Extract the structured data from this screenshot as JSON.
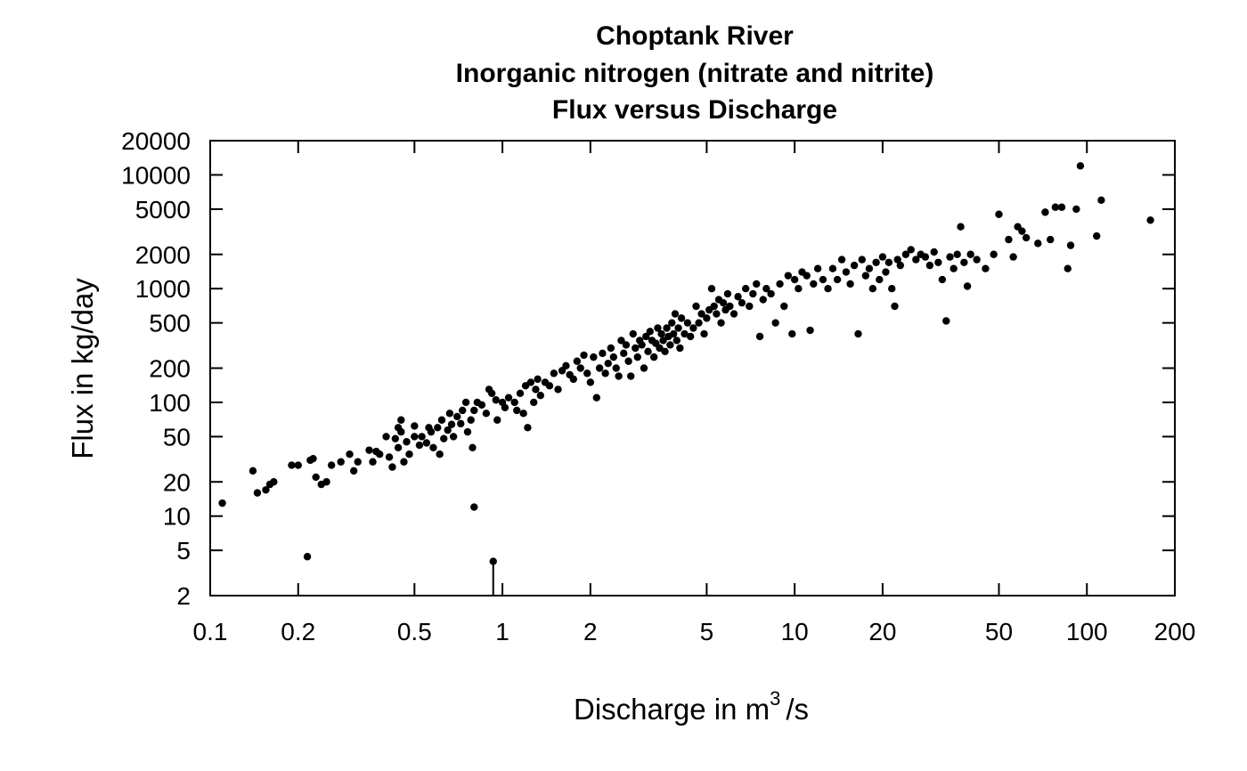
{
  "chart_data": {
    "type": "scatter",
    "title": [
      "Choptank River",
      "Inorganic nitrogen (nitrate and nitrite)",
      "Flux versus Discharge"
    ],
    "xlabel": {
      "prefix": "Discharge in m",
      "superscript": "3",
      "suffix": "/s"
    },
    "ylabel": "Flux in kg/day",
    "x_scale": "log",
    "y_scale": "log",
    "xlim": [
      0.1,
      200
    ],
    "ylim": [
      2,
      20000
    ],
    "x_ticks": [
      0.1,
      0.2,
      0.5,
      1,
      2,
      5,
      10,
      20,
      50,
      100,
      200
    ],
    "x_tick_labels": [
      "0.1",
      "0.2",
      "0.5",
      "1",
      "2",
      "5",
      "10",
      "20",
      "50",
      "100",
      "200"
    ],
    "y_ticks": [
      2,
      5,
      10,
      20,
      50,
      100,
      200,
      500,
      1000,
      2000,
      5000,
      10000,
      20000
    ],
    "y_tick_labels": [
      "2",
      "5",
      "10",
      "20",
      "50",
      "100",
      "200",
      "500",
      "1000",
      "2000",
      "5000",
      "10000",
      "20000"
    ],
    "grid": false,
    "point_color": "#000000",
    "points": [
      [
        0.11,
        13
      ],
      [
        0.14,
        25
      ],
      [
        0.145,
        16
      ],
      [
        0.155,
        17
      ],
      [
        0.16,
        19
      ],
      [
        0.165,
        20
      ],
      [
        0.19,
        28
      ],
      [
        0.2,
        28
      ],
      [
        0.215,
        4.4
      ],
      [
        0.22,
        31
      ],
      [
        0.225,
        32
      ],
      [
        0.23,
        22
      ],
      [
        0.24,
        19
      ],
      [
        0.25,
        20
      ],
      [
        0.26,
        28
      ],
      [
        0.28,
        30
      ],
      [
        0.3,
        35
      ],
      [
        0.31,
        25
      ],
      [
        0.32,
        30
      ],
      [
        0.35,
        38
      ],
      [
        0.36,
        30
      ],
      [
        0.37,
        37
      ],
      [
        0.38,
        35
      ],
      [
        0.4,
        50
      ],
      [
        0.41,
        33
      ],
      [
        0.42,
        27
      ],
      [
        0.43,
        48
      ],
      [
        0.44,
        60
      ],
      [
        0.44,
        40
      ],
      [
        0.45,
        70
      ],
      [
        0.45,
        55
      ],
      [
        0.46,
        30
      ],
      [
        0.47,
        45
      ],
      [
        0.48,
        35
      ],
      [
        0.5,
        50
      ],
      [
        0.5,
        62
      ],
      [
        0.52,
        42
      ],
      [
        0.53,
        50
      ],
      [
        0.55,
        44
      ],
      [
        0.56,
        60
      ],
      [
        0.57,
        55
      ],
      [
        0.58,
        40
      ],
      [
        0.6,
        60
      ],
      [
        0.61,
        35
      ],
      [
        0.62,
        70
      ],
      [
        0.63,
        48
      ],
      [
        0.65,
        57
      ],
      [
        0.66,
        80
      ],
      [
        0.67,
        64
      ],
      [
        0.68,
        50
      ],
      [
        0.7,
        75
      ],
      [
        0.72,
        65
      ],
      [
        0.73,
        85
      ],
      [
        0.75,
        100
      ],
      [
        0.76,
        55
      ],
      [
        0.78,
        70
      ],
      [
        0.79,
        40
      ],
      [
        0.8,
        12
      ],
      [
        0.8,
        85
      ],
      [
        0.82,
        100
      ],
      [
        0.85,
        95
      ],
      [
        0.88,
        80
      ],
      [
        0.9,
        130
      ],
      [
        0.92,
        120
      ],
      [
        0.93,
        4
      ],
      [
        0.95,
        105
      ],
      [
        0.96,
        70
      ],
      [
        1.0,
        100
      ],
      [
        1.02,
        90
      ],
      [
        1.05,
        110
      ],
      [
        1.1,
        100
      ],
      [
        1.12,
        85
      ],
      [
        1.15,
        120
      ],
      [
        1.18,
        80
      ],
      [
        1.2,
        140
      ],
      [
        1.22,
        60
      ],
      [
        1.25,
        150
      ],
      [
        1.28,
        100
      ],
      [
        1.3,
        130
      ],
      [
        1.32,
        160
      ],
      [
        1.35,
        115
      ],
      [
        1.4,
        150
      ],
      [
        1.45,
        140
      ],
      [
        1.5,
        180
      ],
      [
        1.55,
        130
      ],
      [
        1.6,
        190
      ],
      [
        1.65,
        210
      ],
      [
        1.7,
        175
      ],
      [
        1.75,
        160
      ],
      [
        1.8,
        230
      ],
      [
        1.85,
        200
      ],
      [
        1.9,
        260
      ],
      [
        1.95,
        180
      ],
      [
        2.0,
        150
      ],
      [
        2.05,
        250
      ],
      [
        2.1,
        110
      ],
      [
        2.15,
        200
      ],
      [
        2.2,
        270
      ],
      [
        2.25,
        180
      ],
      [
        2.3,
        220
      ],
      [
        2.35,
        300
      ],
      [
        2.4,
        250
      ],
      [
        2.45,
        200
      ],
      [
        2.5,
        170
      ],
      [
        2.55,
        350
      ],
      [
        2.6,
        270
      ],
      [
        2.65,
        320
      ],
      [
        2.7,
        230
      ],
      [
        2.75,
        170
      ],
      [
        2.8,
        400
      ],
      [
        2.85,
        300
      ],
      [
        2.9,
        250
      ],
      [
        2.95,
        350
      ],
      [
        3.0,
        320
      ],
      [
        3.05,
        200
      ],
      [
        3.1,
        380
      ],
      [
        3.15,
        280
      ],
      [
        3.2,
        420
      ],
      [
        3.25,
        350
      ],
      [
        3.3,
        250
      ],
      [
        3.35,
        330
      ],
      [
        3.4,
        450
      ],
      [
        3.45,
        300
      ],
      [
        3.5,
        400
      ],
      [
        3.55,
        350
      ],
      [
        3.6,
        280
      ],
      [
        3.65,
        450
      ],
      [
        3.7,
        380
      ],
      [
        3.75,
        320
      ],
      [
        3.8,
        500
      ],
      [
        3.85,
        400
      ],
      [
        3.9,
        600
      ],
      [
        3.95,
        350
      ],
      [
        4.0,
        450
      ],
      [
        4.05,
        300
      ],
      [
        4.1,
        550
      ],
      [
        4.2,
        400
      ],
      [
        4.3,
        500
      ],
      [
        4.4,
        380
      ],
      [
        4.5,
        450
      ],
      [
        4.6,
        700
      ],
      [
        4.7,
        500
      ],
      [
        4.8,
        600
      ],
      [
        4.9,
        400
      ],
      [
        5.0,
        550
      ],
      [
        5.1,
        650
      ],
      [
        5.2,
        1000
      ],
      [
        5.3,
        700
      ],
      [
        5.4,
        600
      ],
      [
        5.5,
        800
      ],
      [
        5.6,
        500
      ],
      [
        5.7,
        750
      ],
      [
        5.8,
        650
      ],
      [
        5.9,
        900
      ],
      [
        6.0,
        700
      ],
      [
        6.2,
        600
      ],
      [
        6.4,
        850
      ],
      [
        6.6,
        750
      ],
      [
        6.8,
        1000
      ],
      [
        7.0,
        700
      ],
      [
        7.2,
        900
      ],
      [
        7.4,
        1100
      ],
      [
        7.6,
        380
      ],
      [
        7.8,
        800
      ],
      [
        8.0,
        1000
      ],
      [
        8.3,
        900
      ],
      [
        8.6,
        500
      ],
      [
        8.9,
        1100
      ],
      [
        9.2,
        700
      ],
      [
        9.5,
        1300
      ],
      [
        9.8,
        400
      ],
      [
        10.0,
        1200
      ],
      [
        10.3,
        1000
      ],
      [
        10.6,
        1400
      ],
      [
        11.0,
        1300
      ],
      [
        11.3,
        430
      ],
      [
        11.6,
        1100
      ],
      [
        12.0,
        1500
      ],
      [
        12.5,
        1200
      ],
      [
        13.0,
        1000
      ],
      [
        13.5,
        1500
      ],
      [
        14.0,
        1200
      ],
      [
        14.5,
        1800
      ],
      [
        15.0,
        1400
      ],
      [
        15.5,
        1100
      ],
      [
        16.0,
        1600
      ],
      [
        16.5,
        400
      ],
      [
        17.0,
        1800
      ],
      [
        17.5,
        1300
      ],
      [
        18.0,
        1500
      ],
      [
        18.5,
        1000
      ],
      [
        19.0,
        1700
      ],
      [
        19.5,
        1200
      ],
      [
        20.0,
        1900
      ],
      [
        20.5,
        1400
      ],
      [
        21.0,
        1700
      ],
      [
        21.5,
        1000
      ],
      [
        22.0,
        700
      ],
      [
        22.5,
        1800
      ],
      [
        23.0,
        1600
      ],
      [
        24.0,
        2000
      ],
      [
        25.0,
        2200
      ],
      [
        26.0,
        1800
      ],
      [
        27.0,
        2000
      ],
      [
        28.0,
        1900
      ],
      [
        29.0,
        1600
      ],
      [
        30.0,
        2100
      ],
      [
        31.0,
        1700
      ],
      [
        32.0,
        1200
      ],
      [
        33.0,
        520
      ],
      [
        34.0,
        1900
      ],
      [
        35.0,
        1500
      ],
      [
        36.0,
        2000
      ],
      [
        37.0,
        3500
      ],
      [
        38.0,
        1700
      ],
      [
        39.0,
        1050
      ],
      [
        40.0,
        2000
      ],
      [
        42.0,
        1800
      ],
      [
        45.0,
        1500
      ],
      [
        48.0,
        2000
      ],
      [
        50.0,
        4500
      ],
      [
        54.0,
        2700
      ],
      [
        56.0,
        1900
      ],
      [
        58.0,
        3500
      ],
      [
        60.0,
        3200
      ],
      [
        62.0,
        2800
      ],
      [
        68.0,
        2500
      ],
      [
        72.0,
        4700
      ],
      [
        75.0,
        2700
      ],
      [
        78.0,
        5200
      ],
      [
        82.0,
        5200
      ],
      [
        86.0,
        1500
      ],
      [
        88.0,
        2400
      ],
      [
        92.0,
        5000
      ],
      [
        95.0,
        12000
      ],
      [
        108.0,
        2900
      ],
      [
        112.0,
        6000
      ],
      [
        165.0,
        4000
      ]
    ],
    "vertical_segment": {
      "x": 0.93,
      "y_from": 2,
      "y_to": 4
    }
  }
}
